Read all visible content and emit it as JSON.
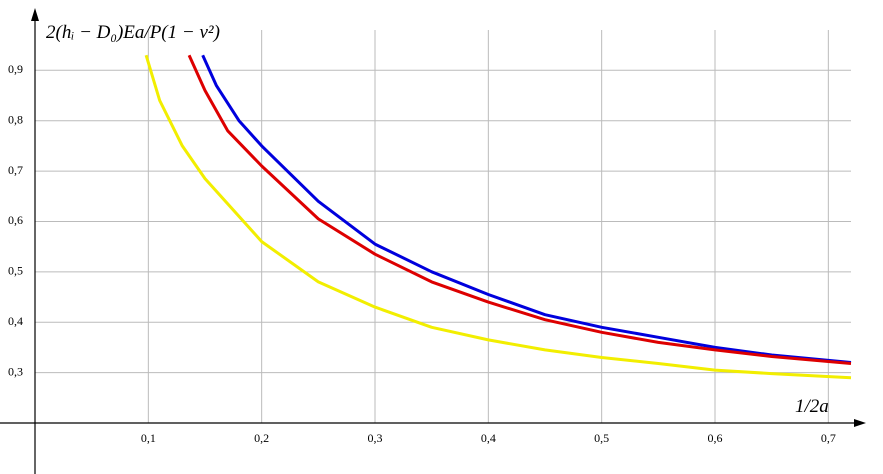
{
  "chart_data": {
    "type": "line",
    "y_label": "2(hᵢ − D₀)Ea/P(1 − ν²)",
    "x_label": "1/2a",
    "xlim": [
      0,
      0.72
    ],
    "ylim": [
      0.2,
      0.98
    ],
    "xticks": [
      {
        "value": 0.1,
        "label": "0,1"
      },
      {
        "value": 0.2,
        "label": "0,2"
      },
      {
        "value": 0.3,
        "label": "0,3"
      },
      {
        "value": 0.4,
        "label": "0,4"
      },
      {
        "value": 0.5,
        "label": "0,5"
      },
      {
        "value": 0.6,
        "label": "0,6"
      },
      {
        "value": 0.7,
        "label": "0,7"
      }
    ],
    "yticks": [
      {
        "value": 0.3,
        "label": "0,3"
      },
      {
        "value": 0.4,
        "label": "0,4"
      },
      {
        "value": 0.5,
        "label": "0,5"
      },
      {
        "value": 0.6,
        "label": "0,6"
      },
      {
        "value": 0.7,
        "label": "0,7"
      },
      {
        "value": 0.8,
        "label": "0,8"
      },
      {
        "value": 0.9,
        "label": "0,9"
      }
    ],
    "grid": true,
    "series": [
      {
        "color": "#0000dd",
        "x": [
          0.148,
          0.16,
          0.18,
          0.2,
          0.25,
          0.3,
          0.35,
          0.4,
          0.45,
          0.5,
          0.55,
          0.6,
          0.65,
          0.72
        ],
        "values": [
          0.93,
          0.87,
          0.8,
          0.75,
          0.64,
          0.555,
          0.5,
          0.455,
          0.415,
          0.39,
          0.37,
          0.35,
          0.335,
          0.32
        ]
      },
      {
        "color": "#dd0000",
        "x": [
          0.136,
          0.15,
          0.17,
          0.2,
          0.25,
          0.3,
          0.35,
          0.4,
          0.45,
          0.5,
          0.55,
          0.6,
          0.65,
          0.72
        ],
        "values": [
          0.93,
          0.86,
          0.78,
          0.71,
          0.605,
          0.535,
          0.48,
          0.44,
          0.405,
          0.38,
          0.36,
          0.345,
          0.332,
          0.318
        ]
      },
      {
        "color": "#f2ee00",
        "x": [
          0.098,
          0.11,
          0.13,
          0.15,
          0.2,
          0.25,
          0.3,
          0.35,
          0.4,
          0.45,
          0.5,
          0.55,
          0.6,
          0.65,
          0.72
        ],
        "values": [
          0.93,
          0.84,
          0.75,
          0.685,
          0.56,
          0.48,
          0.43,
          0.39,
          0.365,
          0.345,
          0.33,
          0.318,
          0.305,
          0.298,
          0.29
        ]
      }
    ]
  }
}
